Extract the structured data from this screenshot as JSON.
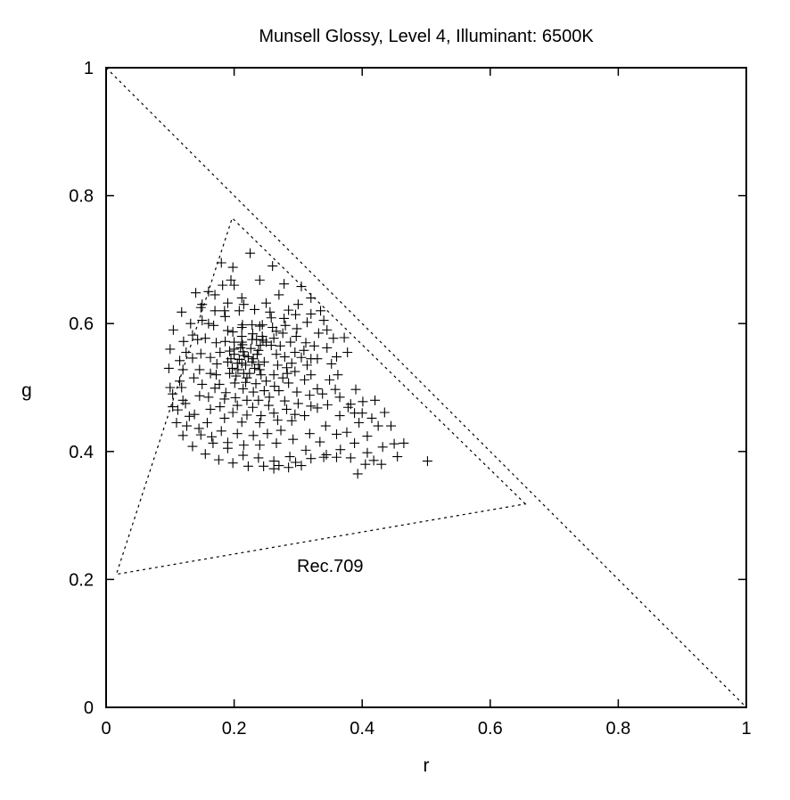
{
  "chart_data": {
    "type": "scatter",
    "title": "Munsell Glossy, Level 4, Illuminant: 6500K",
    "xlabel": "r",
    "ylabel": "g",
    "xlim": [
      0,
      1
    ],
    "ylim": [
      0,
      1
    ],
    "xticks": [
      "0",
      "0.2",
      "0.4",
      "0.6",
      "0.8",
      "1"
    ],
    "yticks": [
      "0",
      "0.2",
      "0.4",
      "0.6",
      "0.8",
      "1"
    ],
    "grid": false,
    "marker": "+",
    "color": "#000000",
    "annotation": "Rec.709",
    "gamut_triangle": [
      [
        0.655,
        0.318
      ],
      [
        0.197,
        0.765
      ],
      [
        0.016,
        0.208
      ]
    ],
    "boundary_line": [
      [
        0,
        1
      ],
      [
        1,
        0
      ]
    ],
    "points": [
      [
        0.222,
        0.548
      ],
      [
        0.228,
        0.54
      ],
      [
        0.218,
        0.535
      ],
      [
        0.208,
        0.544
      ],
      [
        0.214,
        0.556
      ],
      [
        0.226,
        0.561
      ],
      [
        0.236,
        0.552
      ],
      [
        0.232,
        0.53
      ],
      [
        0.206,
        0.528
      ],
      [
        0.2,
        0.552
      ],
      [
        0.213,
        0.567
      ],
      [
        0.241,
        0.566
      ],
      [
        0.247,
        0.54
      ],
      [
        0.242,
        0.52
      ],
      [
        0.22,
        0.515
      ],
      [
        0.205,
        0.538
      ],
      [
        0.235,
        0.575
      ],
      [
        0.21,
        0.562
      ],
      [
        0.238,
        0.536
      ],
      [
        0.215,
        0.522
      ],
      [
        0.25,
        0.571
      ],
      [
        0.262,
        0.577
      ],
      [
        0.272,
        0.565
      ],
      [
        0.279,
        0.548
      ],
      [
        0.282,
        0.531
      ],
      [
        0.276,
        0.515
      ],
      [
        0.263,
        0.502
      ],
      [
        0.247,
        0.495
      ],
      [
        0.23,
        0.493
      ],
      [
        0.214,
        0.498
      ],
      [
        0.201,
        0.507
      ],
      [
        0.193,
        0.522
      ],
      [
        0.19,
        0.54
      ],
      [
        0.193,
        0.557
      ],
      [
        0.2,
        0.571
      ],
      [
        0.212,
        0.58
      ],
      [
        0.229,
        0.584
      ],
      [
        0.244,
        0.58
      ],
      [
        0.266,
        0.588
      ],
      [
        0.24,
        0.596
      ],
      [
        0.213,
        0.598
      ],
      [
        0.19,
        0.589
      ],
      [
        0.172,
        0.57
      ],
      [
        0.163,
        0.547
      ],
      [
        0.163,
        0.522
      ],
      [
        0.17,
        0.499
      ],
      [
        0.185,
        0.482
      ],
      [
        0.205,
        0.472
      ],
      [
        0.229,
        0.469
      ],
      [
        0.254,
        0.472
      ],
      [
        0.279,
        0.479
      ],
      [
        0.298,
        0.493
      ],
      [
        0.31,
        0.512
      ],
      [
        0.314,
        0.535
      ],
      [
        0.309,
        0.558
      ],
      [
        0.297,
        0.58
      ],
      [
        0.28,
        0.597
      ],
      [
        0.258,
        0.609
      ],
      [
        0.285,
        0.621
      ],
      [
        0.25,
        0.632
      ],
      [
        0.215,
        0.63
      ],
      [
        0.185,
        0.62
      ],
      [
        0.16,
        0.6
      ],
      [
        0.143,
        0.575
      ],
      [
        0.135,
        0.546
      ],
      [
        0.137,
        0.515
      ],
      [
        0.146,
        0.487
      ],
      [
        0.163,
        0.466
      ],
      [
        0.185,
        0.452
      ],
      [
        0.212,
        0.446
      ],
      [
        0.24,
        0.445
      ],
      [
        0.268,
        0.449
      ],
      [
        0.295,
        0.458
      ],
      [
        0.32,
        0.471
      ],
      [
        0.338,
        0.49
      ],
      [
        0.349,
        0.512
      ],
      [
        0.352,
        0.537
      ],
      [
        0.345,
        0.562
      ],
      [
        0.332,
        0.585
      ],
      [
        0.314,
        0.602
      ],
      [
        0.296,
        0.614
      ],
      [
        0.32,
        0.64
      ],
      [
        0.278,
        0.662
      ],
      [
        0.24,
        0.668
      ],
      [
        0.2,
        0.66
      ],
      [
        0.17,
        0.645
      ],
      [
        0.148,
        0.625
      ],
      [
        0.132,
        0.6
      ],
      [
        0.121,
        0.572
      ],
      [
        0.115,
        0.542
      ],
      [
        0.115,
        0.51
      ],
      [
        0.12,
        0.48
      ],
      [
        0.13,
        0.455
      ],
      [
        0.145,
        0.436
      ],
      [
        0.165,
        0.423
      ],
      [
        0.19,
        0.414
      ],
      [
        0.215,
        0.41
      ],
      [
        0.24,
        0.41
      ],
      [
        0.266,
        0.413
      ],
      [
        0.292,
        0.419
      ],
      [
        0.318,
        0.428
      ],
      [
        0.343,
        0.44
      ],
      [
        0.365,
        0.456
      ],
      [
        0.382,
        0.474
      ],
      [
        0.39,
        0.497
      ],
      [
        0.377,
        0.555
      ],
      [
        0.355,
        0.577
      ],
      [
        0.372,
        0.578
      ],
      [
        0.34,
        0.605
      ],
      [
        0.335,
        0.62
      ],
      [
        0.305,
        0.658
      ],
      [
        0.26,
        0.69
      ],
      [
        0.225,
        0.71
      ],
      [
        0.198,
        0.688
      ],
      [
        0.182,
        0.66
      ],
      [
        0.16,
        0.65
      ],
      [
        0.14,
        0.648
      ],
      [
        0.118,
        0.618
      ],
      [
        0.105,
        0.59
      ],
      [
        0.1,
        0.56
      ],
      [
        0.098,
        0.53
      ],
      [
        0.1,
        0.5
      ],
      [
        0.104,
        0.47
      ],
      [
        0.11,
        0.445
      ],
      [
        0.12,
        0.425
      ],
      [
        0.135,
        0.408
      ],
      [
        0.155,
        0.396
      ],
      [
        0.176,
        0.387
      ],
      [
        0.198,
        0.382
      ],
      [
        0.222,
        0.377
      ],
      [
        0.246,
        0.377
      ],
      [
        0.27,
        0.378
      ],
      [
        0.296,
        0.383
      ],
      [
        0.32,
        0.389
      ],
      [
        0.344,
        0.395
      ],
      [
        0.366,
        0.403
      ],
      [
        0.388,
        0.413
      ],
      [
        0.408,
        0.424
      ],
      [
        0.425,
        0.44
      ],
      [
        0.435,
        0.461
      ],
      [
        0.42,
        0.48
      ],
      [
        0.401,
        0.478
      ],
      [
        0.388,
        0.46
      ],
      [
        0.395,
        0.445
      ],
      [
        0.376,
        0.43
      ],
      [
        0.36,
        0.427
      ],
      [
        0.334,
        0.415
      ],
      [
        0.312,
        0.402
      ],
      [
        0.287,
        0.392
      ],
      [
        0.262,
        0.385
      ],
      [
        0.238,
        0.39
      ],
      [
        0.214,
        0.394
      ],
      [
        0.19,
        0.405
      ],
      [
        0.167,
        0.413
      ],
      [
        0.148,
        0.426
      ],
      [
        0.126,
        0.44
      ],
      [
        0.112,
        0.465
      ],
      [
        0.104,
        0.49
      ],
      [
        0.408,
        0.398
      ],
      [
        0.432,
        0.407
      ],
      [
        0.45,
        0.412
      ],
      [
        0.465,
        0.413
      ],
      [
        0.455,
        0.392
      ],
      [
        0.418,
        0.386
      ],
      [
        0.43,
        0.38
      ],
      [
        0.405,
        0.38
      ],
      [
        0.393,
        0.365
      ],
      [
        0.382,
        0.39
      ],
      [
        0.36,
        0.391
      ],
      [
        0.34,
        0.391
      ],
      [
        0.305,
        0.378
      ],
      [
        0.285,
        0.375
      ],
      [
        0.262,
        0.373
      ],
      [
        0.502,
        0.385
      ],
      [
        0.445,
        0.44
      ],
      [
        0.415,
        0.452
      ],
      [
        0.4,
        0.46
      ],
      [
        0.378,
        0.469
      ],
      [
        0.365,
        0.485
      ],
      [
        0.346,
        0.473
      ],
      [
        0.33,
        0.468
      ],
      [
        0.31,
        0.456
      ],
      [
        0.29,
        0.448
      ],
      [
        0.273,
        0.433
      ],
      [
        0.252,
        0.428
      ],
      [
        0.23,
        0.425
      ],
      [
        0.205,
        0.428
      ],
      [
        0.18,
        0.432
      ],
      [
        0.158,
        0.445
      ],
      [
        0.138,
        0.458
      ],
      [
        0.124,
        0.475
      ],
      [
        0.118,
        0.5
      ],
      [
        0.12,
        0.528
      ],
      [
        0.125,
        0.555
      ],
      [
        0.135,
        0.582
      ],
      [
        0.15,
        0.605
      ],
      [
        0.17,
        0.62
      ],
      [
        0.19,
        0.632
      ],
      [
        0.212,
        0.64
      ],
      [
        0.27,
        0.645
      ],
      [
        0.3,
        0.63
      ],
      [
        0.32,
        0.615
      ],
      [
        0.345,
        0.59
      ],
      [
        0.36,
        0.548
      ],
      [
        0.362,
        0.52
      ],
      [
        0.358,
        0.497
      ],
      [
        0.33,
        0.498
      ],
      [
        0.318,
        0.488
      ],
      [
        0.3,
        0.475
      ],
      [
        0.282,
        0.466
      ],
      [
        0.262,
        0.46
      ],
      [
        0.242,
        0.456
      ],
      [
        0.22,
        0.457
      ],
      [
        0.198,
        0.461
      ],
      [
        0.178,
        0.47
      ],
      [
        0.16,
        0.485
      ],
      [
        0.15,
        0.505
      ],
      [
        0.146,
        0.528
      ],
      [
        0.148,
        0.553
      ],
      [
        0.155,
        0.577
      ],
      [
        0.168,
        0.597
      ],
      [
        0.186,
        0.611
      ],
      [
        0.208,
        0.62
      ],
      [
        0.232,
        0.622
      ],
      [
        0.256,
        0.618
      ],
      [
        0.278,
        0.608
      ],
      [
        0.298,
        0.592
      ],
      [
        0.312,
        0.57
      ],
      [
        0.32,
        0.545
      ],
      [
        0.18,
        0.695
      ],
      [
        0.195,
        0.668
      ],
      [
        0.15,
        0.63
      ],
      [
        0.32,
        0.52
      ],
      [
        0.33,
        0.545
      ],
      [
        0.325,
        0.565
      ],
      [
        0.305,
        0.547
      ],
      [
        0.295,
        0.525
      ],
      [
        0.285,
        0.507
      ],
      [
        0.27,
        0.495
      ],
      [
        0.255,
        0.485
      ],
      [
        0.238,
        0.48
      ],
      [
        0.22,
        0.48
      ],
      [
        0.202,
        0.484
      ],
      [
        0.187,
        0.492
      ],
      [
        0.177,
        0.505
      ],
      [
        0.172,
        0.52
      ],
      [
        0.173,
        0.537
      ],
      [
        0.178,
        0.555
      ],
      [
        0.186,
        0.572
      ],
      [
        0.198,
        0.587
      ],
      [
        0.212,
        0.594
      ],
      [
        0.228,
        0.598
      ],
      [
        0.244,
        0.598
      ],
      [
        0.26,
        0.594
      ],
      [
        0.276,
        0.585
      ],
      [
        0.288,
        0.571
      ],
      [
        0.295,
        0.555
      ],
      [
        0.29,
        0.538
      ],
      [
        0.283,
        0.522
      ],
      [
        0.203,
        0.518
      ],
      [
        0.218,
        0.508
      ],
      [
        0.234,
        0.506
      ],
      [
        0.25,
        0.51
      ],
      [
        0.262,
        0.52
      ],
      [
        0.268,
        0.535
      ],
      [
        0.266,
        0.552
      ],
      [
        0.258,
        0.566
      ],
      [
        0.245,
        0.574
      ],
      [
        0.228,
        0.575
      ],
      [
        0.212,
        0.571
      ],
      [
        0.2,
        0.56
      ],
      [
        0.195,
        0.545
      ],
      [
        0.197,
        0.53
      ],
      [
        0.238,
        0.558
      ],
      [
        0.224,
        0.522
      ],
      [
        0.216,
        0.55
      ],
      [
        0.23,
        0.545
      ],
      [
        0.212,
        0.538
      ],
      [
        0.24,
        0.528
      ]
    ]
  }
}
